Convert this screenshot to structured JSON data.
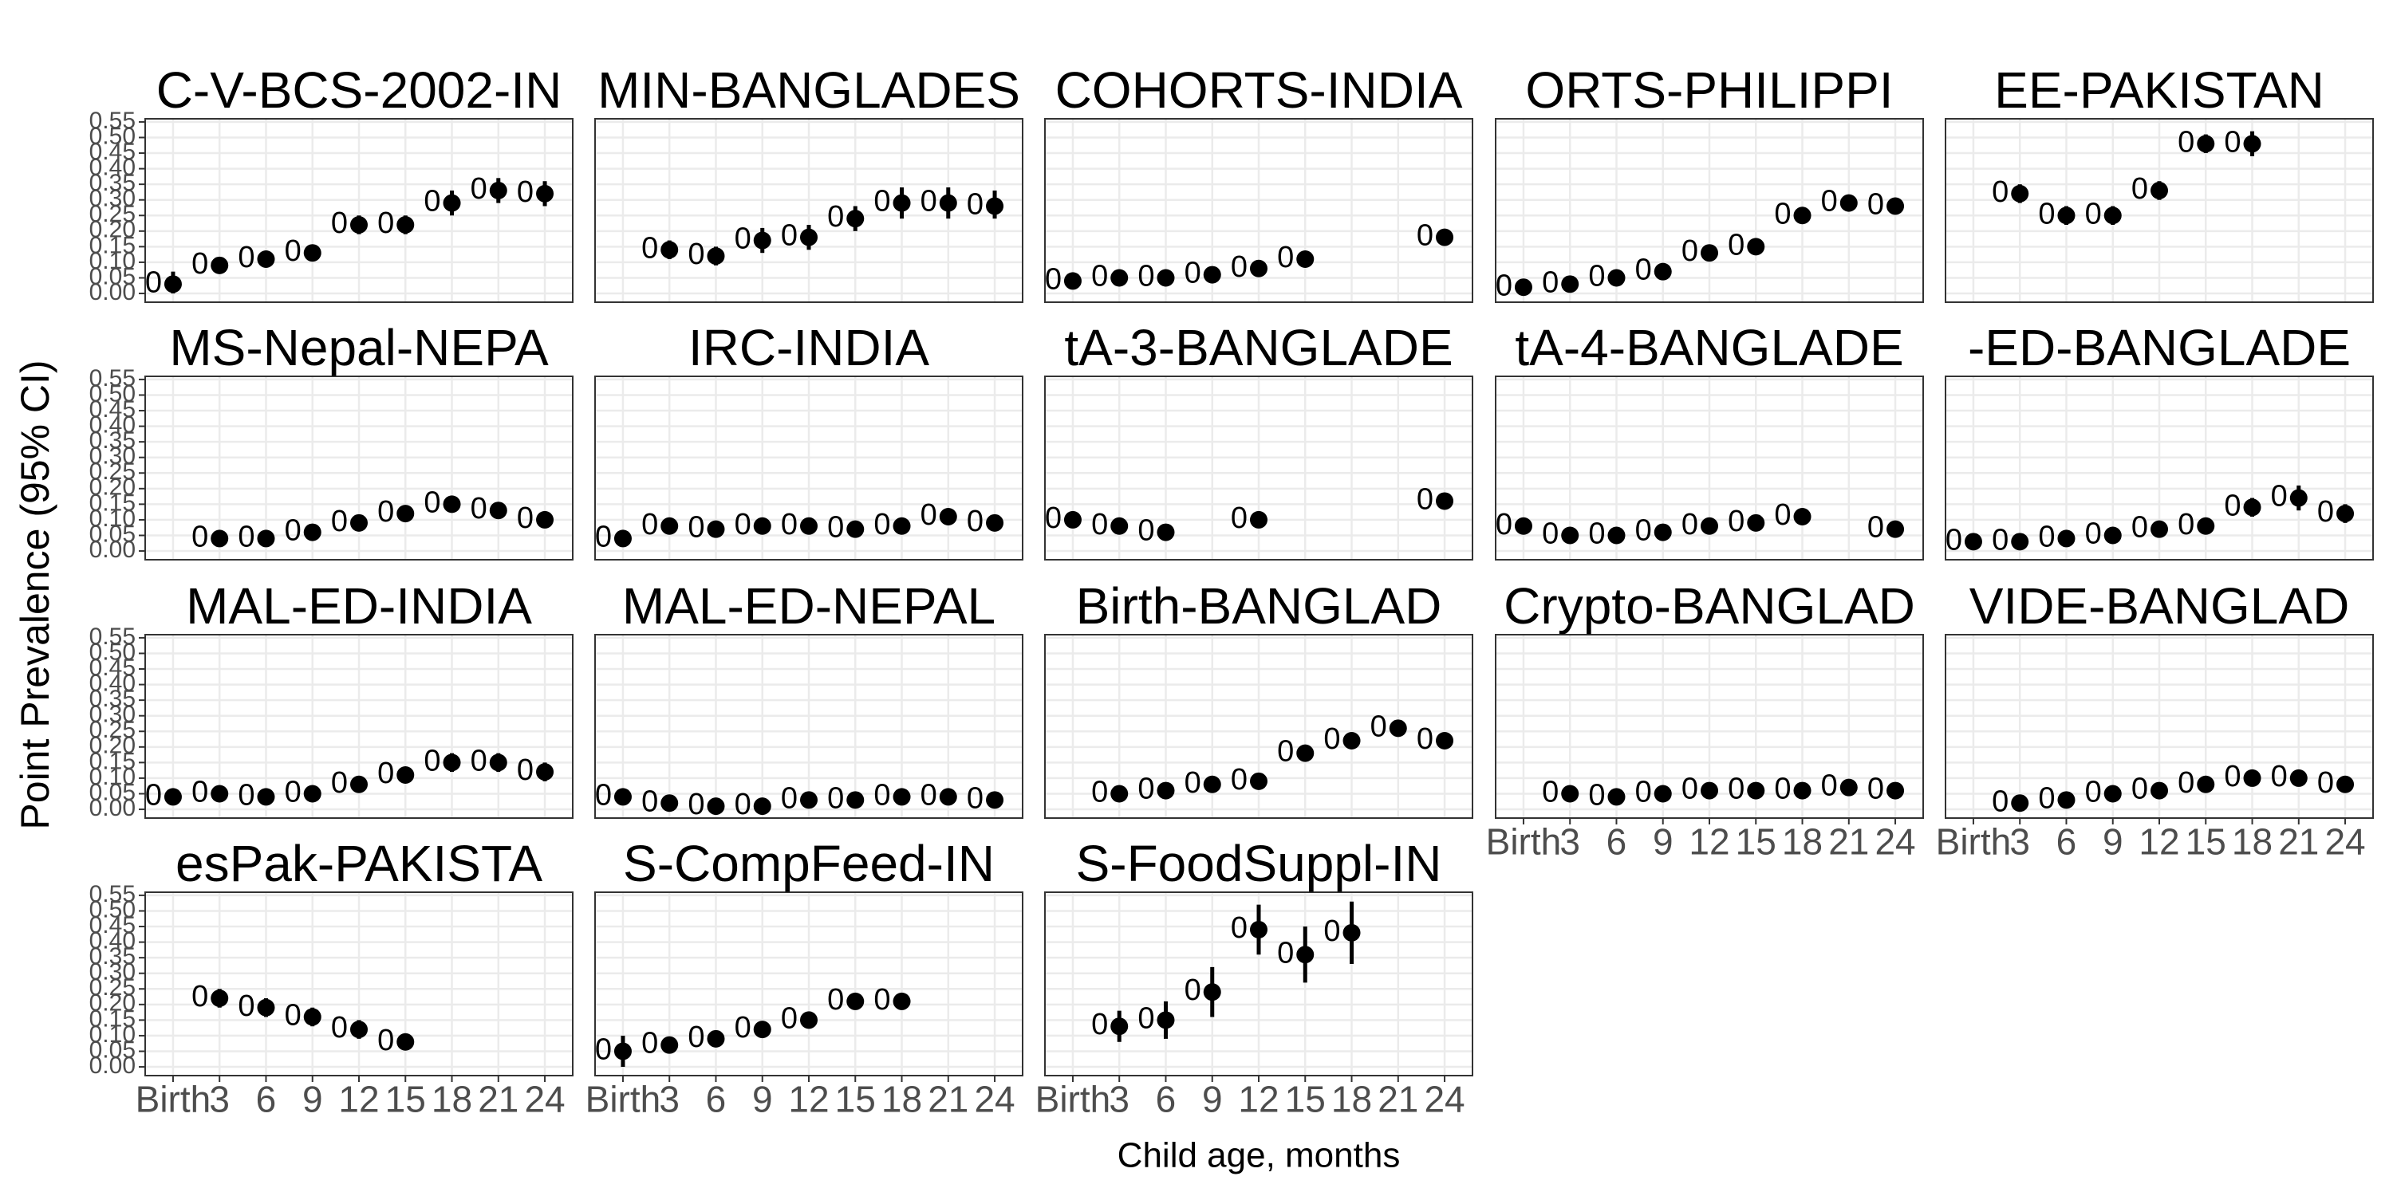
{
  "chart_data": {
    "type": "faceted-pointrange",
    "x_label": "Child age, months",
    "y_label": "Point Prevalence (95% CI)",
    "categories": [
      "Birth",
      "3",
      "6",
      "9",
      "12",
      "15",
      "18",
      "21",
      "24"
    ],
    "ylim": [
      -0.028,
      0.56
    ],
    "yticks": [
      {
        "value": 0,
        "label": "0.00"
      },
      {
        "value": 0.05,
        "label": "0.05"
      },
      {
        "value": 0.1,
        "label": "0.10"
      },
      {
        "value": 0.15,
        "label": "0.15"
      },
      {
        "value": 0.2,
        "label": "0.20"
      },
      {
        "value": 0.25,
        "label": "0.25"
      },
      {
        "value": 0.3,
        "label": "0.30"
      },
      {
        "value": 0.35,
        "label": "0.35"
      },
      {
        "value": 0.4,
        "label": "0.40"
      },
      {
        "value": 0.45,
        "label": "0.45"
      },
      {
        "value": 0.5,
        "label": "0.50"
      },
      {
        "value": 0.55,
        "label": "0.55"
      }
    ],
    "grid": true,
    "color": "#000000",
    "facets": [
      {
        "title": "C-V-BCS-2002-IN",
        "values": [
          0.03,
          0.09,
          0.11,
          0.13,
          0.22,
          0.22,
          0.29,
          0.33,
          0.32
        ],
        "lower": [
          0.0,
          0.07,
          0.09,
          0.11,
          0.19,
          0.19,
          0.25,
          0.29,
          0.28
        ],
        "upper": [
          0.07,
          0.11,
          0.13,
          0.15,
          0.25,
          0.25,
          0.33,
          0.37,
          0.36
        ],
        "value_labels": [
          "0",
          "0",
          "0",
          "0",
          "0",
          "0",
          "0",
          "0",
          "0"
        ]
      },
      {
        "title": "MIN-BANGLADES",
        "values": [
          null,
          0.14,
          0.12,
          0.17,
          0.18,
          0.24,
          0.29,
          0.29,
          0.28
        ],
        "lower": [
          null,
          0.11,
          0.09,
          0.13,
          0.14,
          0.2,
          0.24,
          0.24,
          0.24
        ],
        "upper": [
          null,
          0.17,
          0.15,
          0.21,
          0.22,
          0.28,
          0.34,
          0.34,
          0.33
        ],
        "value_labels": [
          null,
          "0",
          "0",
          "0",
          "0",
          "0",
          "0",
          "0",
          "0"
        ]
      },
      {
        "title": "COHORTS-INDIA",
        "values": [
          0.04,
          0.05,
          0.05,
          0.06,
          0.08,
          0.11,
          null,
          null,
          0.18
        ],
        "lower": [
          0.03,
          0.04,
          0.04,
          0.05,
          0.07,
          0.1,
          null,
          null,
          0.17
        ],
        "upper": [
          0.05,
          0.06,
          0.06,
          0.07,
          0.09,
          0.12,
          null,
          null,
          0.19
        ],
        "value_labels": [
          "0",
          "0",
          "0",
          "0",
          "0",
          "0",
          null,
          null,
          "0"
        ]
      },
      {
        "title": "ORTS-PHILIPPI",
        "values": [
          0.02,
          0.03,
          0.05,
          0.07,
          0.13,
          0.15,
          0.25,
          0.29,
          0.28
        ],
        "lower": [
          0.01,
          0.02,
          0.04,
          0.06,
          0.12,
          0.14,
          0.24,
          0.28,
          0.27
        ],
        "upper": [
          0.03,
          0.04,
          0.06,
          0.08,
          0.14,
          0.16,
          0.26,
          0.3,
          0.29
        ],
        "value_labels": [
          "0",
          "0",
          "0",
          "0",
          "0",
          "0",
          "0",
          "0",
          "0"
        ]
      },
      {
        "title": "EE-PAKISTAN",
        "values": [
          null,
          0.32,
          0.25,
          0.25,
          0.33,
          0.48,
          0.48,
          null,
          null
        ],
        "lower": [
          null,
          0.29,
          0.22,
          0.22,
          0.3,
          0.45,
          0.44,
          null,
          null
        ],
        "upper": [
          null,
          0.35,
          0.28,
          0.28,
          0.36,
          0.51,
          0.52,
          null,
          null
        ],
        "value_labels": [
          null,
          "0",
          "0",
          "0",
          "0",
          "0",
          "0",
          null,
          null
        ]
      },
      {
        "title": "MS-Nepal-NEPA",
        "values": [
          null,
          0.04,
          0.04,
          0.06,
          0.09,
          0.12,
          0.15,
          0.13,
          0.1
        ],
        "lower": [
          null,
          0.03,
          0.03,
          0.05,
          0.08,
          0.11,
          0.14,
          0.12,
          0.09
        ],
        "upper": [
          null,
          0.05,
          0.05,
          0.07,
          0.1,
          0.13,
          0.16,
          0.14,
          0.11
        ],
        "value_labels": [
          null,
          "0",
          "0",
          "0",
          "0",
          "0",
          "0",
          "0",
          "0"
        ]
      },
      {
        "title": "IRC-INDIA",
        "values": [
          0.04,
          0.08,
          0.07,
          0.08,
          0.08,
          0.07,
          0.08,
          0.11,
          0.09
        ],
        "lower": [
          0.03,
          0.07,
          0.06,
          0.07,
          0.07,
          0.06,
          0.07,
          0.1,
          0.08
        ],
        "upper": [
          0.05,
          0.09,
          0.08,
          0.09,
          0.09,
          0.08,
          0.09,
          0.12,
          0.1
        ],
        "value_labels": [
          "0",
          "0",
          "0",
          "0",
          "0",
          "0",
          "0",
          "0",
          "0"
        ]
      },
      {
        "title": "tA-3-BANGLADE",
        "values": [
          0.1,
          0.08,
          0.06,
          null,
          0.1,
          null,
          null,
          null,
          0.16
        ],
        "lower": [
          0.09,
          0.07,
          0.05,
          null,
          0.09,
          null,
          null,
          null,
          0.15
        ],
        "upper": [
          0.11,
          0.09,
          0.07,
          null,
          0.11,
          null,
          null,
          null,
          0.17
        ],
        "value_labels": [
          "0",
          "0",
          "0",
          null,
          "0",
          null,
          null,
          null,
          "0"
        ]
      },
      {
        "title": "tA-4-BANGLADE",
        "values": [
          0.08,
          0.05,
          0.05,
          0.06,
          0.08,
          0.09,
          0.11,
          null,
          0.07
        ],
        "lower": [
          0.06,
          0.04,
          0.04,
          0.05,
          0.07,
          0.08,
          0.1,
          null,
          0.06
        ],
        "upper": [
          0.1,
          0.06,
          0.06,
          0.07,
          0.09,
          0.1,
          0.12,
          null,
          0.08
        ],
        "value_labels": [
          "0",
          "0",
          "0",
          "0",
          "0",
          "0",
          "0",
          null,
          "0"
        ]
      },
      {
        "title": "-ED-BANGLADE",
        "values": [
          0.03,
          0.03,
          0.04,
          0.05,
          0.07,
          0.08,
          0.14,
          0.17,
          0.12
        ],
        "lower": [
          0.02,
          0.02,
          0.03,
          0.04,
          0.05,
          0.06,
          0.11,
          0.13,
          0.09
        ],
        "upper": [
          0.04,
          0.04,
          0.05,
          0.06,
          0.09,
          0.1,
          0.17,
          0.21,
          0.15
        ],
        "value_labels": [
          "0",
          "0",
          "0",
          "0",
          "0",
          "0",
          "0",
          "0",
          "0"
        ]
      },
      {
        "title": "MAL-ED-INDIA",
        "values": [
          0.04,
          0.05,
          0.04,
          0.05,
          0.08,
          0.11,
          0.15,
          0.15,
          0.12
        ],
        "lower": [
          0.03,
          0.04,
          0.03,
          0.04,
          0.06,
          0.09,
          0.12,
          0.12,
          0.09
        ],
        "upper": [
          0.05,
          0.06,
          0.05,
          0.06,
          0.1,
          0.13,
          0.18,
          0.18,
          0.15
        ],
        "value_labels": [
          "0",
          "0",
          "0",
          "0",
          "0",
          "0",
          "0",
          "0",
          "0"
        ]
      },
      {
        "title": "MAL-ED-NEPAL",
        "values": [
          0.04,
          0.02,
          0.01,
          0.01,
          0.03,
          0.03,
          0.04,
          0.04,
          0.03
        ],
        "lower": [
          0.03,
          0.01,
          0.0,
          0.0,
          0.02,
          0.02,
          0.03,
          0.03,
          0.02
        ],
        "upper": [
          0.05,
          0.03,
          0.02,
          0.02,
          0.04,
          0.04,
          0.05,
          0.05,
          0.04
        ],
        "value_labels": [
          "0",
          "0",
          "0",
          "0",
          "0",
          "0",
          "0",
          "0",
          "0"
        ]
      },
      {
        "title": "Birth-BANGLAD",
        "values": [
          null,
          0.05,
          0.06,
          0.08,
          0.09,
          0.18,
          0.22,
          0.26,
          0.22
        ],
        "lower": [
          null,
          0.04,
          0.05,
          0.07,
          0.08,
          0.16,
          0.2,
          0.24,
          0.2
        ],
        "upper": [
          null,
          0.06,
          0.07,
          0.09,
          0.1,
          0.2,
          0.24,
          0.28,
          0.24
        ],
        "value_labels": [
          null,
          "0",
          "0",
          "0",
          "0",
          "0",
          "0",
          "0",
          "0"
        ]
      },
      {
        "title": "Crypto-BANGLAD",
        "values": [
          null,
          0.05,
          0.04,
          0.05,
          0.06,
          0.06,
          0.06,
          0.07,
          0.06
        ],
        "lower": [
          null,
          0.04,
          0.03,
          0.04,
          0.05,
          0.05,
          0.05,
          0.06,
          0.05
        ],
        "upper": [
          null,
          0.06,
          0.05,
          0.06,
          0.07,
          0.07,
          0.07,
          0.08,
          0.07
        ],
        "value_labels": [
          null,
          "0",
          "0",
          "0",
          "0",
          "0",
          "0",
          "0",
          "0"
        ]
      },
      {
        "title": "VIDE-BANGLAD",
        "values": [
          null,
          0.02,
          0.03,
          0.05,
          0.06,
          0.08,
          0.1,
          0.1,
          0.08
        ],
        "lower": [
          null,
          0.01,
          0.02,
          0.04,
          0.05,
          0.07,
          0.09,
          0.09,
          0.07
        ],
        "upper": [
          null,
          0.03,
          0.04,
          0.06,
          0.07,
          0.09,
          0.11,
          0.11,
          0.09
        ],
        "value_labels": [
          null,
          "0",
          "0",
          "0",
          "0",
          "0",
          "0",
          "0",
          "0"
        ]
      },
      {
        "title": "esPak-PAKISTA",
        "values": [
          null,
          0.22,
          0.19,
          0.16,
          0.12,
          0.08,
          null,
          null,
          null
        ],
        "lower": [
          null,
          0.19,
          0.16,
          0.13,
          0.09,
          0.06,
          null,
          null,
          null
        ],
        "upper": [
          null,
          0.25,
          0.22,
          0.19,
          0.15,
          0.1,
          null,
          null,
          null
        ],
        "value_labels": [
          null,
          "0",
          "0",
          "0",
          "0",
          "0",
          null,
          null,
          null
        ]
      },
      {
        "title": "S-CompFeed-IN",
        "values": [
          0.05,
          0.07,
          0.09,
          0.12,
          0.15,
          0.21,
          0.21,
          null,
          null
        ],
        "lower": [
          0.0,
          0.06,
          0.08,
          0.11,
          0.14,
          0.19,
          0.19,
          null,
          null
        ],
        "upper": [
          0.1,
          0.08,
          0.1,
          0.13,
          0.16,
          0.23,
          0.23,
          null,
          null
        ],
        "value_labels": [
          "0",
          "0",
          "0",
          "0",
          "0",
          "0",
          "0",
          null,
          null
        ]
      },
      {
        "title": "S-FoodSuppl-IN",
        "values": [
          null,
          0.13,
          0.15,
          0.24,
          0.44,
          0.36,
          0.43,
          null,
          null
        ],
        "lower": [
          null,
          0.08,
          0.09,
          0.16,
          0.36,
          0.27,
          0.33,
          null,
          null
        ],
        "upper": [
          null,
          0.18,
          0.21,
          0.32,
          0.52,
          0.45,
          0.53,
          null,
          null
        ],
        "value_labels": [
          null,
          "0",
          "0",
          "0",
          "0",
          "0",
          "0",
          null,
          null
        ]
      }
    ]
  }
}
